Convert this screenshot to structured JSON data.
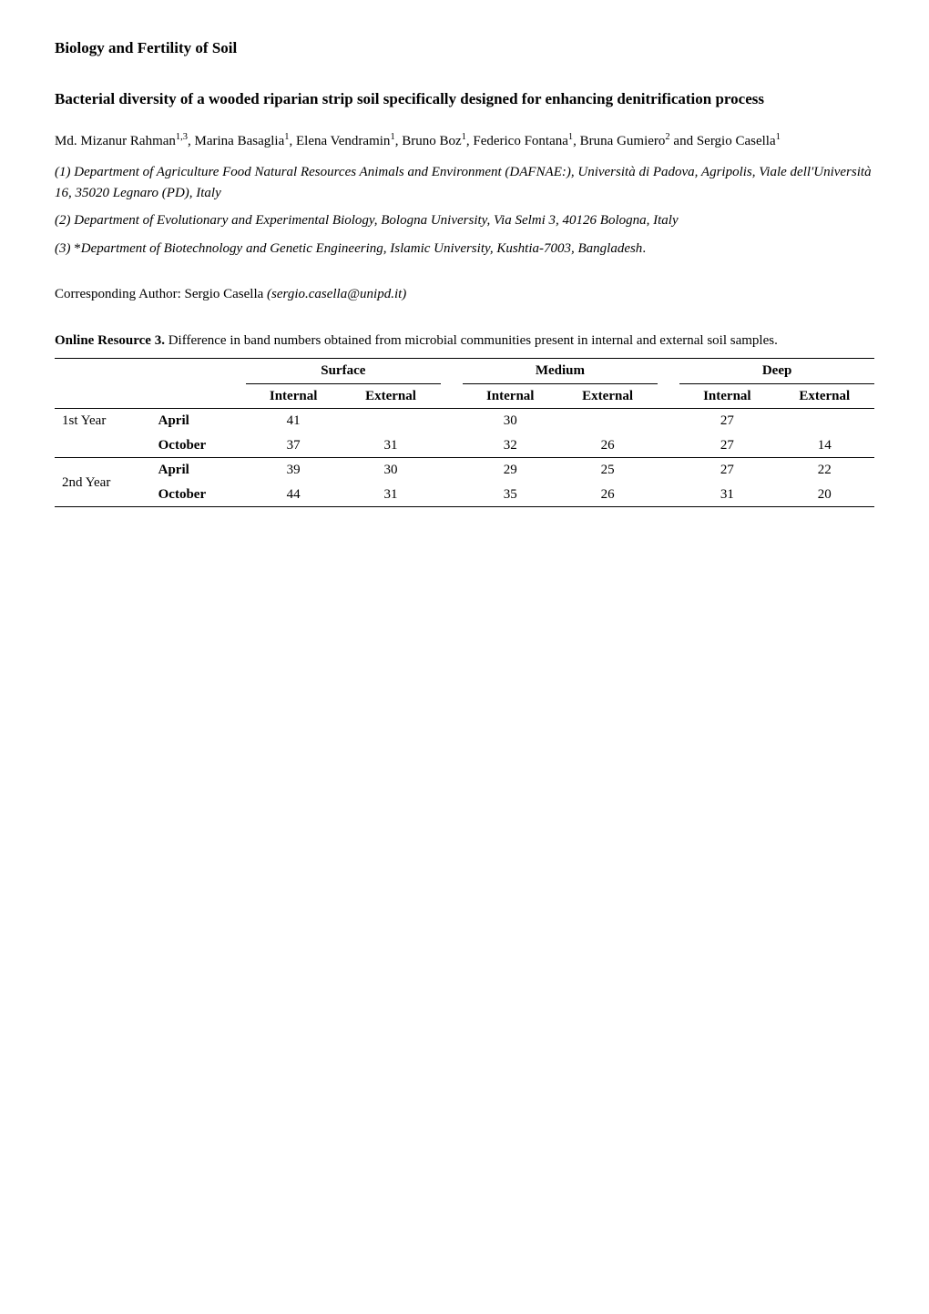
{
  "journal": "Biology and Fertility of Soil",
  "title": "Bacterial diversity of a wooded riparian strip soil specifically designed for enhancing denitrification process",
  "authors_line1": "Md. Mizanur Rahman",
  "authors_sup1": "1,3",
  "authors_line2": ", Marina Basaglia",
  "authors_sup2": "1",
  "authors_line3": ", Elena Vendramin",
  "authors_sup3": "1",
  "authors_line4": ", Bruno Boz",
  "authors_sup4": "1",
  "authors_line5": ", Federico Fontana",
  "authors_sup5": "1",
  "authors_line6": ", Bruna Gumiero",
  "authors_sup6": "2",
  "authors_line7": " and Sergio Casella",
  "authors_sup7": "1",
  "aff1": "(1) Department of Agriculture Food Natural Resources Animals and Environment (DAFNAE:), Università di Padova, Agripolis, Viale dell'Università 16, 35020 Legnaro (PD), Italy",
  "aff2": "(2) Department of Evolutionary and Experimental Biology, Bologna University, Via Selmi 3, 40126 Bologna, Italy",
  "aff3_prefix": "(3) ",
  "aff3_star": "*",
  "aff3_body": "Department of Biotechnology and Genetic Engineering, Islamic University, Kushtia-7003, Bangladesh",
  "aff3_period": ".",
  "corresponding_label": "Corresponding Author:   Sergio Casella  ",
  "corresponding_email": "(sergio.casella@unipd.it)",
  "table_caption_bold": "Online Resource 3.",
  "table_caption_rest": " Difference in band numbers obtained from microbial communities present in internal and external soil samples.",
  "table": {
    "group_headers": [
      "Surface",
      "Medium",
      "Deep"
    ],
    "sub_headers": [
      "Internal",
      "External",
      "Internal",
      "External",
      "Internal",
      "External"
    ],
    "rows": [
      {
        "year": "1st Year",
        "month": "April",
        "vals": [
          "41",
          "",
          "30",
          "",
          "27",
          ""
        ]
      },
      {
        "year": "",
        "month": "October",
        "vals": [
          "37",
          "31",
          "32",
          "26",
          "27",
          "14"
        ]
      },
      {
        "year": "2nd Year",
        "month": "April",
        "vals": [
          "39",
          "30",
          "29",
          "25",
          "27",
          "22"
        ]
      },
      {
        "year": "",
        "month": "October",
        "vals": [
          "44",
          "31",
          "35",
          "26",
          "31",
          "20"
        ]
      }
    ]
  }
}
